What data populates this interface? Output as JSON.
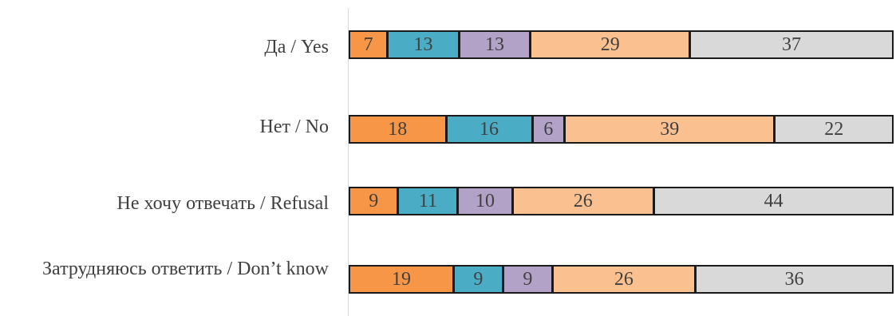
{
  "chart_data": {
    "type": "bar",
    "orientation": "horizontal",
    "stacked": true,
    "normalized_percent": true,
    "categories": [
      "Да / Yes",
      "Нет / No",
      "Не хочу отвечать / Refusal",
      "Затрудняюсь ответить / Don’t know"
    ],
    "series": [
      {
        "color": "#f79646",
        "values": [
          7,
          18,
          9,
          19
        ]
      },
      {
        "color": "#4bacc6",
        "values": [
          13,
          16,
          11,
          9
        ]
      },
      {
        "color": "#b3a2c7",
        "values": [
          13,
          6,
          10,
          9
        ]
      },
      {
        "color": "#fac090",
        "values": [
          29,
          39,
          26,
          26
        ]
      },
      {
        "color": "#d9d9d9",
        "values": [
          37,
          22,
          44,
          36
        ]
      }
    ],
    "data_labels": true,
    "legend": "none",
    "grid": false
  }
}
